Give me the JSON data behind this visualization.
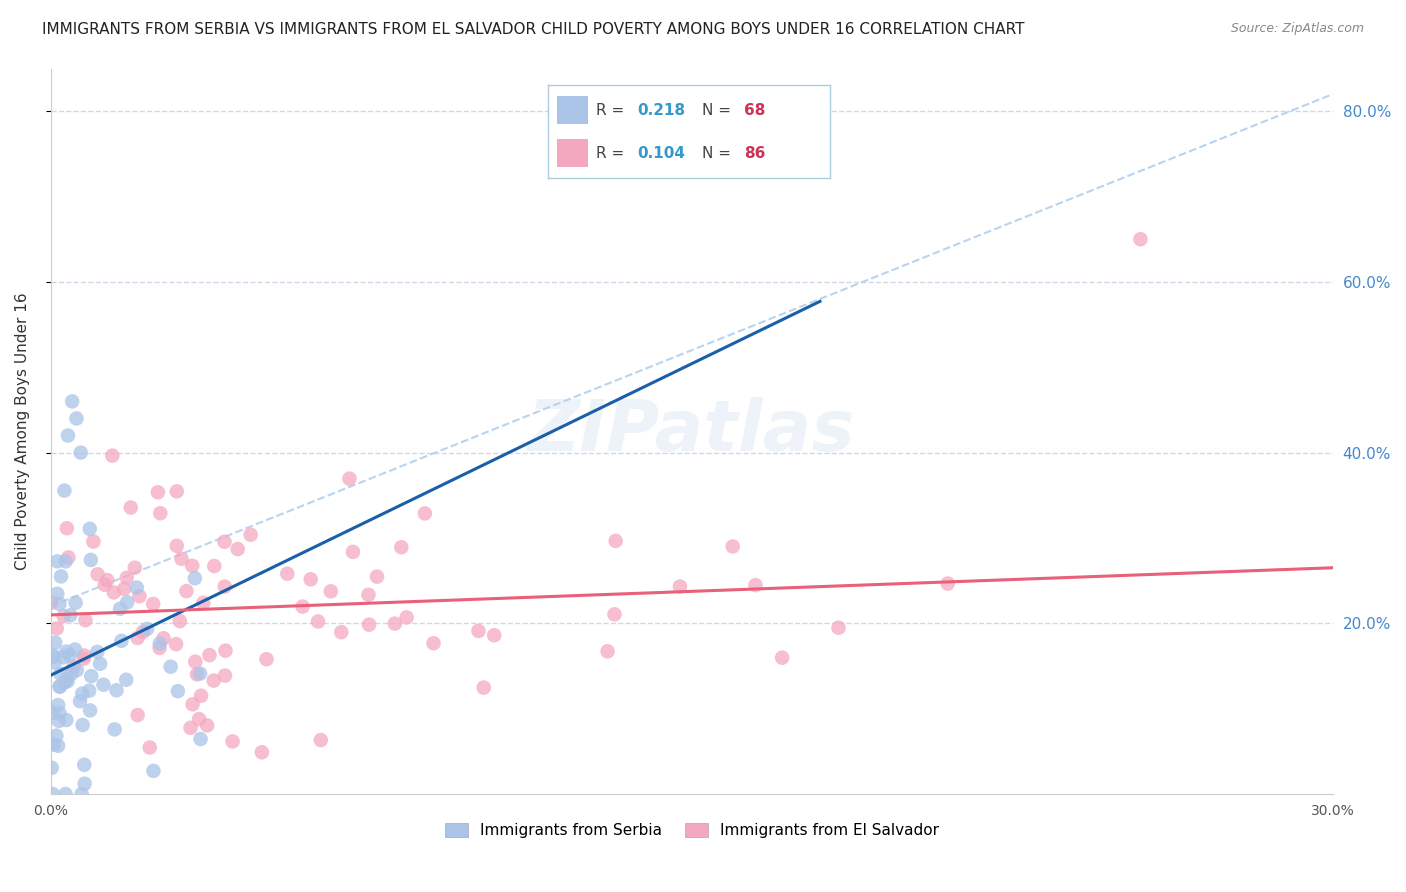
{
  "title": "IMMIGRANTS FROM SERBIA VS IMMIGRANTS FROM EL SALVADOR CHILD POVERTY AMONG BOYS UNDER 16 CORRELATION CHART",
  "source": "Source: ZipAtlas.com",
  "ylabel": "Child Poverty Among Boys Under 16",
  "right_yticks": [
    "80.0%",
    "60.0%",
    "40.0%",
    "20.0%"
  ],
  "right_ytick_vals": [
    0.8,
    0.6,
    0.4,
    0.2
  ],
  "watermark": "ZIPatlas",
  "serbia_color": "#aac4e8",
  "salvador_color": "#f4a8c0",
  "serbia_line_color": "#1a5fa8",
  "salvador_line_color": "#e8607a",
  "serbia_dash_color": "#b8d4f0",
  "serbia_R": 0.218,
  "serbia_N": 68,
  "salvador_R": 0.104,
  "salvador_N": 86,
  "xlim": [
    0.0,
    0.3
  ],
  "ylim": [
    0.0,
    0.85
  ],
  "ytick_positions": [
    0.2,
    0.4,
    0.6,
    0.8
  ],
  "background_color": "#ffffff",
  "grid_color": "#d0d8e8",
  "title_fontsize": 11,
  "r_color": "#3399cc",
  "n_color": "#cc3355"
}
